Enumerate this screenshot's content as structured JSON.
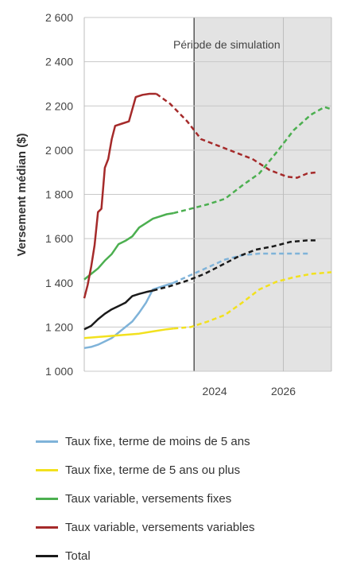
{
  "chart_data": {
    "type": "line",
    "ylabel": "Versement médian ($)",
    "ylim": [
      1000,
      2600
    ],
    "yticks": [
      1000,
      1200,
      1400,
      1600,
      1800,
      2000,
      2200,
      2400,
      2600
    ],
    "ytick_labels": [
      "1 000",
      "1 200",
      "1 400",
      "1 600",
      "1 800",
      "2 000",
      "2 200",
      "2 400",
      "2 600"
    ],
    "xlim": [
      2020.2,
      2027.4
    ],
    "xticks": [
      2024,
      2026
    ],
    "xtick_labels": [
      "2024",
      "2026"
    ],
    "simulation_start": 2023.4,
    "annotation": "Période de simulation",
    "grid": true,
    "legend_position": "bottom",
    "series": [
      {
        "name": "Taux fixe, terme de moins de 5 ans",
        "color": "#7fb3d9",
        "actual": [
          [
            2020.2,
            1105
          ],
          [
            2020.4,
            1110
          ],
          [
            2020.6,
            1120
          ],
          [
            2020.8,
            1135
          ],
          [
            2021.0,
            1150
          ],
          [
            2021.2,
            1175
          ],
          [
            2021.4,
            1200
          ],
          [
            2021.6,
            1225
          ],
          [
            2021.8,
            1265
          ],
          [
            2022.0,
            1310
          ],
          [
            2022.2,
            1370
          ],
          [
            2022.4,
            1380
          ],
          [
            2022.6,
            1390
          ],
          [
            2022.8,
            1400
          ]
        ],
        "projected": [
          [
            2022.8,
            1400
          ],
          [
            2023.3,
            1435
          ],
          [
            2023.8,
            1470
          ],
          [
            2024.3,
            1505
          ],
          [
            2024.8,
            1525
          ],
          [
            2025.3,
            1532
          ],
          [
            2025.8,
            1532
          ],
          [
            2026.3,
            1532
          ],
          [
            2026.8,
            1532
          ]
        ]
      },
      {
        "name": "Taux fixe, terme de 5 ans ou plus",
        "color": "#f2e11e",
        "actual": [
          [
            2020.2,
            1150
          ],
          [
            2020.6,
            1155
          ],
          [
            2021.0,
            1160
          ],
          [
            2021.4,
            1165
          ],
          [
            2021.8,
            1170
          ],
          [
            2022.2,
            1180
          ],
          [
            2022.6,
            1190
          ],
          [
            2022.8,
            1193
          ]
        ],
        "projected": [
          [
            2022.8,
            1193
          ],
          [
            2023.3,
            1200
          ],
          [
            2023.8,
            1225
          ],
          [
            2024.3,
            1255
          ],
          [
            2024.8,
            1310
          ],
          [
            2025.3,
            1370
          ],
          [
            2025.8,
            1405
          ],
          [
            2026.3,
            1425
          ],
          [
            2026.8,
            1440
          ],
          [
            2027.4,
            1448
          ]
        ]
      },
      {
        "name": "Taux variable, versements fixes",
        "color": "#4caf50",
        "actual": [
          [
            2020.2,
            1415
          ],
          [
            2020.4,
            1440
          ],
          [
            2020.6,
            1465
          ],
          [
            2020.8,
            1500
          ],
          [
            2021.0,
            1530
          ],
          [
            2021.2,
            1575
          ],
          [
            2021.4,
            1590
          ],
          [
            2021.6,
            1610
          ],
          [
            2021.8,
            1650
          ],
          [
            2022.0,
            1670
          ],
          [
            2022.2,
            1690
          ],
          [
            2022.4,
            1700
          ],
          [
            2022.6,
            1710
          ],
          [
            2022.8,
            1715
          ]
        ],
        "projected": [
          [
            2022.8,
            1715
          ],
          [
            2023.3,
            1735
          ],
          [
            2023.8,
            1755
          ],
          [
            2024.3,
            1780
          ],
          [
            2024.8,
            1840
          ],
          [
            2025.3,
            1895
          ],
          [
            2025.8,
            1990
          ],
          [
            2026.3,
            2090
          ],
          [
            2026.8,
            2160
          ],
          [
            2027.2,
            2195
          ],
          [
            2027.4,
            2185
          ]
        ]
      },
      {
        "name": "Taux variable, versements variables",
        "color": "#a52a2a",
        "actual": [
          [
            2020.2,
            1330
          ],
          [
            2020.3,
            1390
          ],
          [
            2020.4,
            1470
          ],
          [
            2020.5,
            1570
          ],
          [
            2020.6,
            1720
          ],
          [
            2020.7,
            1735
          ],
          [
            2020.8,
            1920
          ],
          [
            2020.9,
            1960
          ],
          [
            2021.0,
            2050
          ],
          [
            2021.1,
            2110
          ],
          [
            2021.3,
            2120
          ],
          [
            2021.5,
            2130
          ],
          [
            2021.7,
            2240
          ],
          [
            2021.9,
            2250
          ],
          [
            2022.1,
            2255
          ],
          [
            2022.3,
            2255
          ]
        ],
        "projected": [
          [
            2022.3,
            2255
          ],
          [
            2022.7,
            2210
          ],
          [
            2023.2,
            2130
          ],
          [
            2023.6,
            2050
          ],
          [
            2024.1,
            2020
          ],
          [
            2024.6,
            1990
          ],
          [
            2025.1,
            1960
          ],
          [
            2025.6,
            1910
          ],
          [
            2026.1,
            1880
          ],
          [
            2026.4,
            1875
          ],
          [
            2026.7,
            1895
          ],
          [
            2027.0,
            1900
          ]
        ]
      },
      {
        "name": "Total",
        "color": "#1a1a1a",
        "actual": [
          [
            2020.2,
            1190
          ],
          [
            2020.4,
            1205
          ],
          [
            2020.6,
            1235
          ],
          [
            2020.8,
            1260
          ],
          [
            2021.0,
            1280
          ],
          [
            2021.2,
            1295
          ],
          [
            2021.4,
            1310
          ],
          [
            2021.6,
            1340
          ],
          [
            2021.8,
            1350
          ],
          [
            2022.0,
            1358
          ],
          [
            2022.2,
            1365
          ]
        ],
        "projected": [
          [
            2022.2,
            1365
          ],
          [
            2022.7,
            1385
          ],
          [
            2023.2,
            1410
          ],
          [
            2023.7,
            1440
          ],
          [
            2024.2,
            1480
          ],
          [
            2024.7,
            1520
          ],
          [
            2025.2,
            1550
          ],
          [
            2025.7,
            1565
          ],
          [
            2026.2,
            1585
          ],
          [
            2026.7,
            1592
          ],
          [
            2027.0,
            1592
          ]
        ]
      }
    ]
  }
}
